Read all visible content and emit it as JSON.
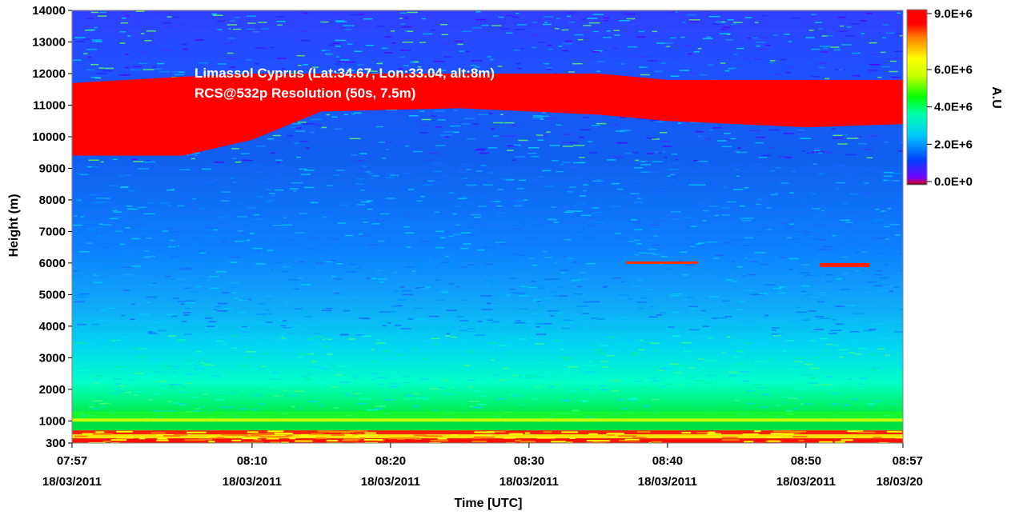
{
  "chart_data": {
    "type": "heatmap",
    "annotation_lines": [
      "Limassol Cyprus (Lat:34.67, Lon:33.04, alt:8m)",
      "RCS@532p Resolution (50s, 7.5m)"
    ],
    "xlabel": "Time [UTC]",
    "ylabel": "Height (m)",
    "x_range": [
      "07:57",
      "08:57"
    ],
    "x_ticks": [
      {
        "time": "07:57",
        "date": "18/03/2011"
      },
      {
        "time": "08:10",
        "date": "18/03/2011"
      },
      {
        "time": "08:20",
        "date": "18/03/2011"
      },
      {
        "time": "08:30",
        "date": "18/03/2011"
      },
      {
        "time": "08:40",
        "date": "18/03/2011"
      },
      {
        "time": "08:50",
        "date": "18/03/2011"
      },
      {
        "time": "08:57",
        "date": "18/03/20"
      }
    ],
    "y_range": [
      300,
      14000
    ],
    "y_ticks": [
      "14000",
      "13000",
      "12000",
      "11000",
      "10000",
      "9000",
      "8000",
      "7000",
      "6000",
      "5000",
      "4000",
      "3000",
      "2000",
      "1000",
      "300"
    ],
    "colorbar": {
      "label": "A.U",
      "range": [
        0,
        9000000
      ],
      "ticks": [
        "9.0E+6",
        "6.0E+6",
        "4.0E+6",
        "2.0E+6",
        "0.0E+0"
      ],
      "colors": [
        "#000000",
        "#c8003c",
        "#7800ff",
        "#0040ff",
        "#00c8ff",
        "#00ffb0",
        "#00ff00",
        "#c8ff00",
        "#ffff00",
        "#ff8000",
        "#ff0000"
      ]
    },
    "cloud_layer": {
      "description_values_m": [
        {
          "time": "07:57",
          "bottom": 9400,
          "top": 11700
        },
        {
          "time": "08:05",
          "bottom": 9400,
          "top": 11900
        },
        {
          "time": "08:10",
          "bottom": 9900,
          "top": 12000
        },
        {
          "time": "08:15",
          "bottom": 10800,
          "top": 12000
        },
        {
          "time": "08:25",
          "bottom": 10900,
          "top": 12000
        },
        {
          "time": "08:35",
          "bottom": 10700,
          "top": 12000
        },
        {
          "time": "08:40",
          "bottom": 10500,
          "top": 11800
        },
        {
          "time": "08:50",
          "bottom": 10300,
          "top": 11800
        },
        {
          "time": "08:57",
          "bottom": 10400,
          "top": 11800
        }
      ]
    },
    "boundary_layer_top_m": 1000,
    "surface_layer_top_m": 700
  }
}
